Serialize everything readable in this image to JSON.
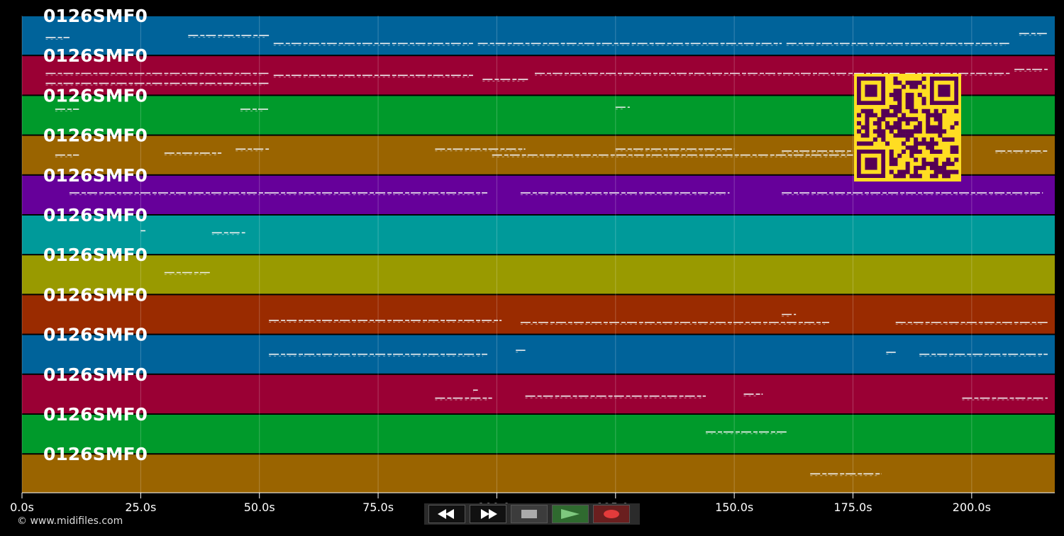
{
  "tracks": [
    {
      "label": "0126SMF0",
      "color": "#00639a"
    },
    {
      "label": "0126SMF0",
      "color": "#9a0034"
    },
    {
      "label": "0126SMF0",
      "color": "#009a2b"
    },
    {
      "label": "0126SMF0",
      "color": "#9a6400"
    },
    {
      "label": "0126SMF0",
      "color": "#66009a"
    },
    {
      "label": "0126SMF0",
      "color": "#009a9a"
    },
    {
      "label": "0126SMF0",
      "color": "#999a00"
    },
    {
      "label": "0126SMF0",
      "color": "#9a2b00"
    },
    {
      "label": "0126SMF0",
      "color": "#00639a"
    },
    {
      "label": "0126SMF0",
      "color": "#9a0034"
    },
    {
      "label": "0126SMF0",
      "color": "#009a2b"
    },
    {
      "label": "0126SMF0",
      "color": "#9a6400"
    }
  ],
  "time_axis": {
    "max_seconds": 217.5,
    "ticks": [
      {
        "value": 0,
        "label": "0.0s"
      },
      {
        "value": 25,
        "label": "25.0s"
      },
      {
        "value": 50,
        "label": "50.0s"
      },
      {
        "value": 75,
        "label": "75.0s"
      },
      {
        "value": 100,
        "label": "100.0s"
      },
      {
        "value": 125,
        "label": "125.0s"
      },
      {
        "value": 150,
        "label": "150.0s"
      },
      {
        "value": 175,
        "label": "175.0s"
      },
      {
        "value": 200,
        "label": "200.0s"
      }
    ]
  },
  "notes": [
    {
      "track": 0,
      "segments": [
        [
          5,
          10,
          0.55
        ],
        [
          35,
          52,
          0.5
        ],
        [
          53,
          95,
          0.7
        ],
        [
          96,
          160,
          0.7
        ],
        [
          161,
          208,
          0.7
        ],
        [
          210,
          216,
          0.45
        ]
      ]
    },
    {
      "track": 1,
      "segments": [
        [
          5,
          52,
          0.45
        ],
        [
          5,
          52,
          0.7
        ],
        [
          53,
          95,
          0.5
        ],
        [
          97,
          107,
          0.6
        ],
        [
          108,
          185,
          0.45
        ],
        [
          186,
          208,
          0.45
        ],
        [
          209,
          216,
          0.35
        ]
      ]
    },
    {
      "track": 2,
      "segments": [
        [
          7,
          12,
          0.35
        ],
        [
          46,
          52,
          0.35
        ],
        [
          125,
          128,
          0.3
        ]
      ]
    },
    {
      "track": 3,
      "segments": [
        [
          7,
          12,
          0.5
        ],
        [
          30,
          42,
          0.45
        ],
        [
          45,
          52,
          0.35
        ],
        [
          87,
          106,
          0.35
        ],
        [
          99,
          175,
          0.5
        ],
        [
          125,
          150,
          0.35
        ],
        [
          160,
          175,
          0.4
        ],
        [
          205,
          216,
          0.4
        ]
      ]
    },
    {
      "track": 4,
      "segments": [
        [
          10,
          52,
          0.45
        ],
        [
          52,
          98,
          0.45
        ],
        [
          105,
          149,
          0.45
        ],
        [
          160,
          215,
          0.45
        ]
      ]
    },
    {
      "track": 5,
      "segments": [
        [
          25,
          26,
          0.4
        ],
        [
          40,
          47,
          0.45
        ]
      ]
    },
    {
      "track": 6,
      "segments": [
        [
          30,
          40,
          0.45
        ]
      ]
    },
    {
      "track": 7,
      "segments": [
        [
          52,
          101,
          0.65
        ],
        [
          105,
          170,
          0.7
        ],
        [
          160,
          163,
          0.5
        ],
        [
          184,
          216,
          0.7
        ]
      ]
    },
    {
      "track": 8,
      "segments": [
        [
          52,
          98,
          0.5
        ],
        [
          104,
          106,
          0.4
        ],
        [
          182,
          184,
          0.45
        ],
        [
          189,
          216,
          0.5
        ]
      ]
    },
    {
      "track": 9,
      "segments": [
        [
          87,
          99,
          0.6
        ],
        [
          95,
          96,
          0.4
        ],
        [
          106,
          144,
          0.55
        ],
        [
          152,
          156,
          0.5
        ],
        [
          198,
          216,
          0.6
        ]
      ]
    },
    {
      "track": 10,
      "segments": [
        [
          144,
          161,
          0.45
        ]
      ]
    },
    {
      "track": 11,
      "segments": [
        [
          166,
          181,
          0.5
        ]
      ]
    }
  ],
  "footer": {
    "copyright": "© www.midifiles.com"
  },
  "transport": {
    "rewind_icon": "double-arrow-left-icon",
    "forward_icon": "double-arrow-right-icon",
    "stop_icon": "stop-square-icon",
    "play_icon": "play-triangle-icon",
    "record_icon": "record-dot-icon"
  },
  "colors": {
    "background": "#000000",
    "qr_fg": "#550055",
    "qr_bg": "#ffdd22"
  }
}
